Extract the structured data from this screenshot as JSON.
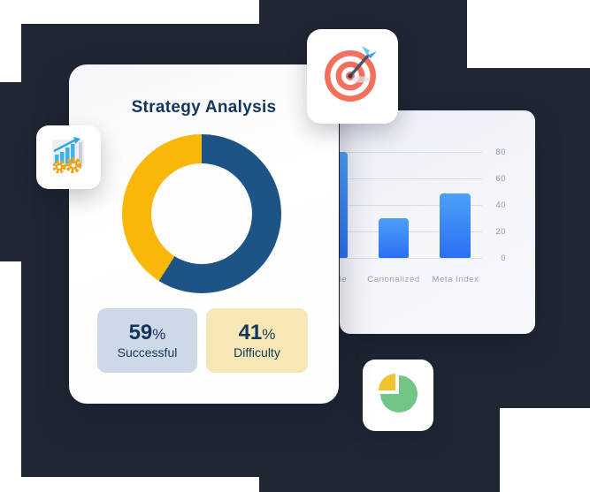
{
  "colors": {
    "dark_shape": "#202634",
    "navy_text": "#14355C",
    "donut_blue": "#1D5385",
    "donut_yellow": "#F9B70A",
    "stat_box_blue_bg": "#CDD9E6",
    "stat_box_yellow_bg": "#F7E7B5",
    "bar_gradient_top": "#4DA0F8",
    "bar_gradient_bottom": "#2B6FF3",
    "gridline": "#D8DCE7",
    "axis_label": "#8F96A8"
  },
  "strategy_card": {
    "title": "Strategy Analysis",
    "stats": [
      {
        "value": "59",
        "unit": "%",
        "label": "Successful"
      },
      {
        "value": "41",
        "unit": "%",
        "label": "Difficulty"
      }
    ]
  },
  "icons": [
    {
      "name": "growth-gears-icon",
      "desc": "bar graph with rising arrow and two orange gears"
    },
    {
      "name": "dartboard-icon",
      "desc": "red target with blue-feathered dart in bullseye"
    },
    {
      "name": "pie-chart-icon",
      "desc": "green pie with exploded yellow quarter slice"
    }
  ],
  "chart_data": [
    {
      "type": "pie",
      "subtype": "donut",
      "title": "Strategy Analysis",
      "labels": [
        "Successful",
        "Difficulty"
      ],
      "values": [
        59,
        41
      ],
      "colors": [
        "#1D5385",
        "#F9B70A"
      ],
      "start_angle_deg": 0,
      "direction": "clockwise"
    },
    {
      "type": "bar",
      "categories": [
        "le",
        "Canonalized",
        "Meta Index"
      ],
      "values": [
        80,
        30,
        49
      ],
      "ylim": [
        0,
        80
      ],
      "yticks": [
        0,
        20,
        40,
        60,
        80
      ],
      "ytick_side": "right",
      "grid": true,
      "first_category_clipped_by_overlapping_card": true
    }
  ]
}
